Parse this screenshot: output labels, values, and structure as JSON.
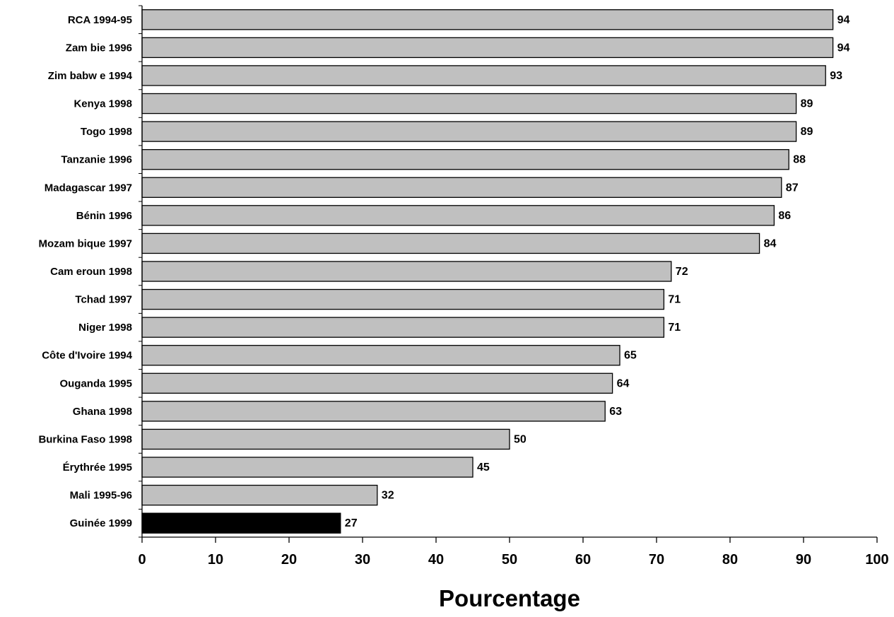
{
  "chart_data": {
    "type": "bar",
    "orientation": "horizontal",
    "categories": [
      "RCA 1994-95",
      "Zam bie 1996",
      "Zim babw e 1994",
      "Kenya 1998",
      "Togo 1998",
      "Tanzanie 1996",
      "Madagascar 1997",
      "Bénin 1996",
      "Mozam bique 1997",
      "Cam eroun 1998",
      "Tchad 1997",
      "Niger 1998",
      "Côte d'Ivoire 1994",
      "Ouganda 1995",
      "Ghana 1998",
      "Burkina Faso 1998",
      "Érythrée 1995",
      "Mali 1995-96",
      "Guinée 1999"
    ],
    "values": [
      94,
      94,
      93,
      89,
      89,
      88,
      87,
      86,
      84,
      72,
      71,
      71,
      65,
      64,
      63,
      50,
      45,
      32,
      27
    ],
    "value_labels": [
      "94",
      "94",
      "93",
      "89",
      "89",
      "88",
      "87",
      "86",
      "84",
      "72",
      "71",
      "71",
      "65",
      "64",
      "63",
      "50",
      "45",
      "32",
      "27"
    ],
    "xlabel": "Pourcentage",
    "ylabel": "",
    "xlim": [
      0,
      100
    ],
    "xticks": [
      0,
      10,
      20,
      30,
      40,
      50,
      60,
      70,
      80,
      90,
      100
    ],
    "xtick_labels": [
      "0",
      "10",
      "20",
      "30",
      "40",
      "50",
      "60",
      "70",
      "80",
      "90",
      "100"
    ],
    "grid": false,
    "legend": "none",
    "colors": {
      "bar": "#c0c0c0",
      "highlight_bar": "#000000",
      "bar_stroke": "#000000",
      "axis": "#000000"
    },
    "highlight_category": "Guinée 1999"
  }
}
